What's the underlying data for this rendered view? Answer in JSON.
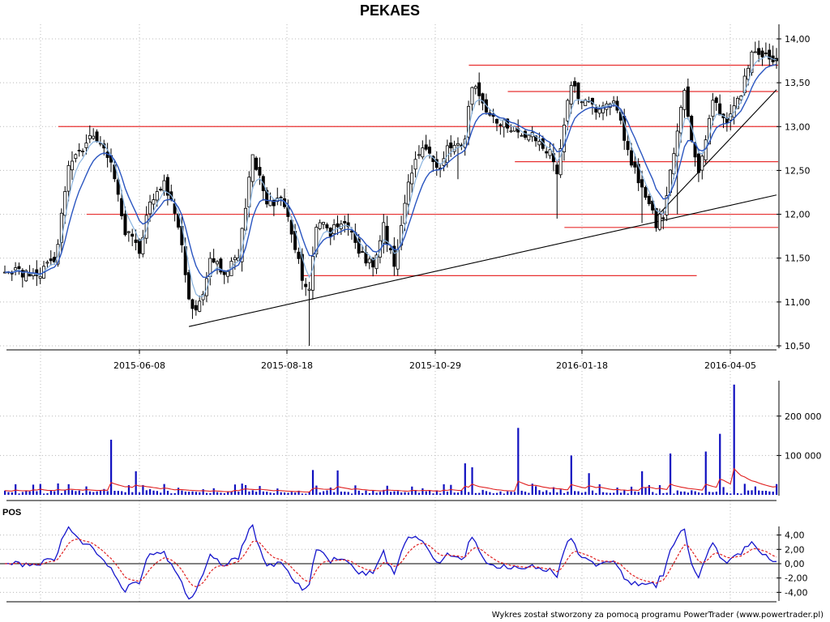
{
  "chart_data": [
    {
      "type": "candlestick",
      "title": "PEKAES",
      "x_ticks": [
        "2015-06-08",
        "2015-08-18",
        "2015-10-29",
        "2016-01-18",
        "2016-04-05"
      ],
      "y_ticks": [
        "10,50",
        "11,00",
        "11,50",
        "12,00",
        "12,50",
        "13,00",
        "13,50",
        "14,00"
      ],
      "ylim": [
        10.5,
        14.0
      ],
      "grid": true,
      "close_anchors": [
        [
          0,
          11.35
        ],
        [
          8,
          11.3
        ],
        [
          14,
          11.45
        ],
        [
          18,
          12.5
        ],
        [
          24,
          12.9
        ],
        [
          27,
          12.8
        ],
        [
          30,
          12.6
        ],
        [
          34,
          11.8
        ],
        [
          38,
          11.6
        ],
        [
          41,
          12.1
        ],
        [
          45,
          12.4
        ],
        [
          49,
          11.9
        ],
        [
          52,
          11.0
        ],
        [
          55,
          10.95
        ],
        [
          58,
          11.5
        ],
        [
          62,
          11.3
        ],
        [
          66,
          11.55
        ],
        [
          70,
          12.7
        ],
        [
          74,
          12.1
        ],
        [
          78,
          12.2
        ],
        [
          80,
          12.0
        ],
        [
          84,
          11.3
        ],
        [
          86,
          11.15
        ],
        [
          88,
          11.9
        ],
        [
          92,
          11.8
        ],
        [
          96,
          11.9
        ],
        [
          100,
          11.6
        ],
        [
          104,
          11.4
        ],
        [
          107,
          11.85
        ],
        [
          110,
          11.4
        ],
        [
          114,
          12.4
        ],
        [
          118,
          12.8
        ],
        [
          122,
          12.5
        ],
        [
          126,
          12.8
        ],
        [
          130,
          12.85
        ],
        [
          132,
          13.5
        ],
        [
          135,
          13.25
        ],
        [
          138,
          13.1
        ],
        [
          142,
          13.0
        ],
        [
          146,
          12.95
        ],
        [
          150,
          12.85
        ],
        [
          154,
          12.7
        ],
        [
          156,
          12.45
        ],
        [
          158,
          13.0
        ],
        [
          160,
          13.5
        ],
        [
          164,
          13.25
        ],
        [
          168,
          13.2
        ],
        [
          172,
          13.35
        ],
        [
          176,
          12.7
        ],
        [
          180,
          12.3
        ],
        [
          184,
          11.9
        ],
        [
          186,
          12.0
        ],
        [
          188,
          12.5
        ],
        [
          190,
          13.0
        ],
        [
          192,
          13.4
        ],
        [
          194,
          12.8
        ],
        [
          196,
          12.5
        ],
        [
          198,
          12.9
        ],
        [
          200,
          13.3
        ],
        [
          204,
          13.0
        ],
        [
          208,
          13.4
        ],
        [
          211,
          13.85
        ],
        [
          214,
          13.8
        ],
        [
          218,
          13.75
        ]
      ],
      "reference_levels": [
        {
          "value": 13.7,
          "from_index": 132,
          "to_index": 218
        },
        {
          "value": 13.4,
          "from_index": 143,
          "to_index": 218
        },
        {
          "value": 13.0,
          "from_index": 16,
          "to_index": 218
        },
        {
          "value": 12.6,
          "from_index": 145,
          "to_index": 218
        },
        {
          "value": 12.0,
          "from_index": 24,
          "to_index": 218
        },
        {
          "value": 11.85,
          "from_index": 159,
          "to_index": 218
        },
        {
          "value": 11.3,
          "from_index": 85,
          "to_index": 195
        }
      ],
      "trend_lines": [
        {
          "from": [
            52,
            10.72
          ],
          "to": [
            218,
            12.22
          ]
        },
        {
          "from": [
            184,
            11.97
          ],
          "to": [
            218,
            13.42
          ]
        }
      ],
      "colors": {
        "candle": "#000000",
        "ma_short": "#8ab4e0",
        "ma_long": "#2a55c0",
        "levels": "#e83030",
        "trend": "#000000"
      }
    },
    {
      "type": "bar",
      "name": "volume",
      "y_ticks": [
        "100 000",
        "200 000"
      ],
      "ylim": [
        0,
        290000
      ],
      "spikes": [
        [
          30,
          140000
        ],
        [
          37,
          60000
        ],
        [
          87,
          63000
        ],
        [
          94,
          62000
        ],
        [
          130,
          80000
        ],
        [
          132,
          70000
        ],
        [
          145,
          170000
        ],
        [
          160,
          100000
        ],
        [
          165,
          55000
        ],
        [
          180,
          60000
        ],
        [
          188,
          105000
        ],
        [
          198,
          110000
        ],
        [
          202,
          155000
        ],
        [
          206,
          280000
        ],
        [
          209,
          28000
        ]
      ],
      "colors": {
        "bar": "#1010c0",
        "avg": "#e02020"
      }
    },
    {
      "type": "line",
      "name": "oscillator",
      "label": "POS",
      "y_ticks": [
        "4,00",
        "2,00",
        "0,00",
        "-2,00",
        "-4,00"
      ],
      "ylim": [
        -5.2,
        5.2
      ],
      "colors": {
        "oscillator": "#1515cc",
        "signal": "#e02020"
      }
    }
  ],
  "footer": "Wykres został stworzony za pomocą programu PowerTrader (www.powertrader.pl)"
}
